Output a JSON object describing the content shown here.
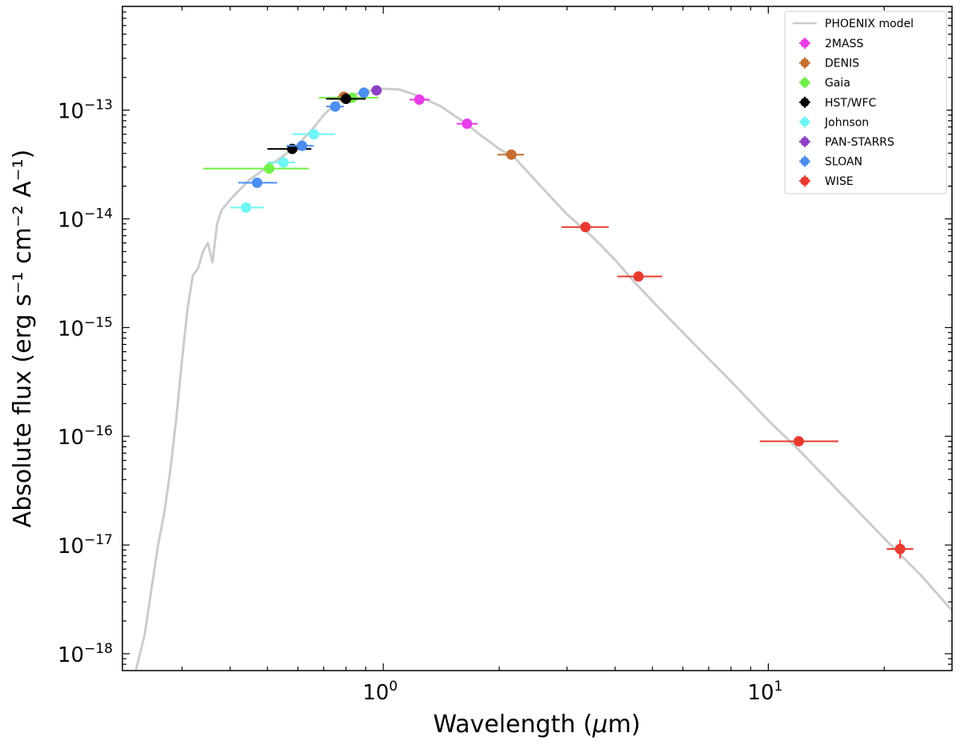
{
  "chart_data": {
    "type": "scatter",
    "title": "",
    "xlabel_prefix": "Wavelength (",
    "xlabel_mu": "μ",
    "xlabel_suffix": "m)",
    "ylabel": "Absolute flux (erg s⁻¹ cm⁻² A⁻¹)",
    "xscale": "log",
    "yscale": "log",
    "xlim": [
      0.21,
      30
    ],
    "ylim": [
      7e-19,
      9e-13
    ],
    "x_ticks": [
      {
        "value": 1,
        "base": "10",
        "exp": "0"
      },
      {
        "value": 10,
        "base": "10",
        "exp": "1"
      }
    ],
    "y_ticks": [
      {
        "value": 1e-13,
        "base": "10",
        "exp": "−13"
      },
      {
        "value": 1e-14,
        "base": "10",
        "exp": "−14"
      },
      {
        "value": 1e-15,
        "base": "10",
        "exp": "−15"
      },
      {
        "value": 1e-16,
        "base": "10",
        "exp": "−16"
      },
      {
        "value": 1e-17,
        "base": "10",
        "exp": "−17"
      },
      {
        "value": 1e-18,
        "base": "10",
        "exp": "−18"
      }
    ],
    "legend_position": "top-right",
    "model": {
      "name": "PHOENIX model",
      "color": "#cccccc",
      "points": [
        [
          0.225,
          6e-19
        ],
        [
          0.24,
          1.5e-18
        ],
        [
          0.25,
          4e-18
        ],
        [
          0.26,
          1e-17
        ],
        [
          0.27,
          2e-17
        ],
        [
          0.28,
          5e-17
        ],
        [
          0.29,
          1.5e-16
        ],
        [
          0.3,
          5e-16
        ],
        [
          0.31,
          1.5e-15
        ],
        [
          0.32,
          3e-15
        ],
        [
          0.33,
          3.5e-15
        ],
        [
          0.34,
          5e-15
        ],
        [
          0.35,
          6e-15
        ],
        [
          0.36,
          4e-15
        ],
        [
          0.37,
          9e-15
        ],
        [
          0.38,
          1.2e-14
        ],
        [
          0.4,
          1.5e-14
        ],
        [
          0.42,
          1.8e-14
        ],
        [
          0.45,
          2.3e-14
        ],
        [
          0.5,
          3e-14
        ],
        [
          0.55,
          3.8e-14
        ],
        [
          0.6,
          4.8e-14
        ],
        [
          0.65,
          6.5e-14
        ],
        [
          0.7,
          9e-14
        ],
        [
          0.75,
          1.15e-13
        ],
        [
          0.8,
          1.3e-13
        ],
        [
          0.9,
          1.5e-13
        ],
        [
          1.0,
          1.57e-13
        ],
        [
          1.1,
          1.55e-13
        ],
        [
          1.2,
          1.4e-13
        ],
        [
          1.4,
          1.1e-13
        ],
        [
          1.6,
          8e-14
        ],
        [
          1.8,
          5.8e-14
        ],
        [
          2.0,
          4.4e-14
        ],
        [
          2.2,
          3.6e-14
        ],
        [
          2.5,
          2.2e-14
        ],
        [
          3.0,
          1.1e-14
        ],
        [
          3.5,
          6.8e-15
        ],
        [
          4.0,
          4.2e-15
        ],
        [
          4.5,
          2.6e-15
        ],
        [
          5.0,
          1.75e-15
        ],
        [
          6.0,
          9e-16
        ],
        [
          8.0,
          3.2e-16
        ],
        [
          10.0,
          1.4e-16
        ],
        [
          12.0,
          7.5e-17
        ],
        [
          15.0,
          3.3e-17
        ],
        [
          20.0,
          1.15e-17
        ],
        [
          25.0,
          5.2e-18
        ],
        [
          30.0,
          2.5e-18
        ]
      ]
    },
    "series": [
      {
        "name": "2MASS",
        "color": "#e83ee8",
        "points": [
          {
            "x": 1.24,
            "y": 1.25e-13,
            "xerr": [
              1.17,
              1.32
            ]
          },
          {
            "x": 1.65,
            "y": 7.5e-14,
            "xerr": [
              1.55,
              1.76
            ]
          }
        ]
      },
      {
        "name": "DENIS",
        "color": "#c56e32",
        "points": [
          {
            "x": 2.15,
            "y": 3.9e-14,
            "xerr": [
              1.98,
              2.32
            ]
          },
          {
            "x": 0.79,
            "y": 1.33e-13,
            "xerr": [
              0.76,
              0.82
            ]
          }
        ]
      },
      {
        "name": "Gaia",
        "color": "#71f049",
        "points": [
          {
            "x": 0.505,
            "y": 2.9e-14,
            "xerr": [
              0.34,
              0.64
            ]
          },
          {
            "x": 0.83,
            "y": 1.3e-13,
            "xerr": [
              0.68,
              0.97
            ]
          }
        ]
      },
      {
        "name": "HST/WFC",
        "color": "#000000",
        "points": [
          {
            "x": 0.58,
            "y": 4.4e-14,
            "xerr": [
              0.5,
              0.65
            ]
          },
          {
            "x": 0.8,
            "y": 1.27e-13,
            "xerr": [
              0.71,
              0.9
            ]
          }
        ]
      },
      {
        "name": "Johnson",
        "color": "#6ff5f5",
        "points": [
          {
            "x": 0.44,
            "y": 1.27e-14,
            "xerr": [
              0.4,
              0.49
            ]
          },
          {
            "x": 0.55,
            "y": 3.3e-14,
            "xerr": [
              0.5,
              0.59
            ]
          },
          {
            "x": 0.66,
            "y": 6e-14,
            "xerr": [
              0.58,
              0.75
            ]
          }
        ]
      },
      {
        "name": "PAN-STARRS",
        "color": "#8d3fc4",
        "points": [
          {
            "x": 0.96,
            "y": 1.52e-13,
            "xerr": [
              0.93,
              0.99
            ]
          }
        ]
      },
      {
        "name": "SLOAN",
        "color": "#4b8ef0",
        "points": [
          {
            "x": 0.47,
            "y": 2.15e-14,
            "xerr": [
              0.42,
              0.53
            ]
          },
          {
            "x": 0.615,
            "y": 4.7e-14,
            "xerr": [
              0.56,
              0.66
            ]
          },
          {
            "x": 0.75,
            "y": 1.08e-13,
            "xerr": [
              0.71,
              0.79
            ]
          },
          {
            "x": 0.89,
            "y": 1.45e-13,
            "xerr": [
              0.86,
              0.92
            ]
          }
        ]
      },
      {
        "name": "WISE",
        "color": "#e83a2e",
        "points": [
          {
            "x": 3.35,
            "y": 8.4e-15,
            "xerr": [
              2.9,
              3.85
            ]
          },
          {
            "x": 4.6,
            "y": 2.95e-15,
            "xerr": [
              4.05,
              5.3
            ]
          },
          {
            "x": 12.0,
            "y": 9e-17,
            "xerr": [
              9.5,
              15.2
            ]
          },
          {
            "x": 22.0,
            "y": 9.2e-18,
            "xerr": [
              20.3,
              23.8
            ],
            "yerr": [
              7.5e-18,
              1.12e-17
            ]
          }
        ]
      }
    ]
  }
}
